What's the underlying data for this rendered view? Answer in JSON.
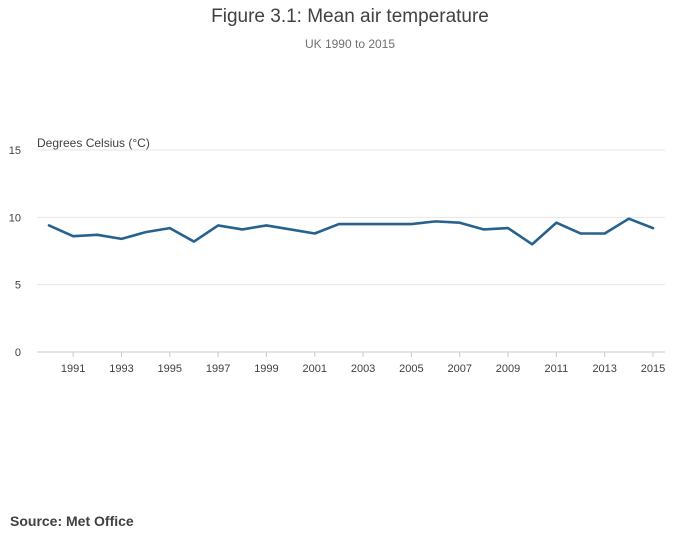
{
  "chart_data": {
    "type": "line",
    "title": "Figure 3.1: Mean air temperature",
    "subtitle": "UK 1990 to 2015",
    "ylabel": "Degrees Celsius (°C)",
    "xlabel": "",
    "ylim": [
      0,
      15
    ],
    "yticks": [
      0,
      5,
      10,
      15
    ],
    "xlim": [
      1990,
      2015
    ],
    "xticks": [
      1991,
      1993,
      1995,
      1997,
      1999,
      2001,
      2003,
      2005,
      2007,
      2009,
      2011,
      2013,
      2015
    ],
    "grid": true,
    "series": [
      {
        "name": "Mean air temperature",
        "color": "#27628f",
        "x": [
          1990,
          1991,
          1992,
          1993,
          1994,
          1995,
          1996,
          1997,
          1998,
          1999,
          2000,
          2001,
          2002,
          2003,
          2004,
          2005,
          2006,
          2007,
          2008,
          2009,
          2010,
          2011,
          2012,
          2013,
          2014,
          2015
        ],
        "values": [
          9.4,
          8.6,
          8.7,
          8.4,
          8.9,
          9.2,
          8.2,
          9.4,
          9.1,
          9.4,
          9.1,
          8.8,
          9.5,
          9.5,
          9.5,
          9.5,
          9.7,
          9.6,
          9.1,
          9.2,
          8.0,
          9.6,
          8.8,
          8.8,
          9.9,
          9.2
        ]
      }
    ]
  },
  "source": "Source: Met Office"
}
